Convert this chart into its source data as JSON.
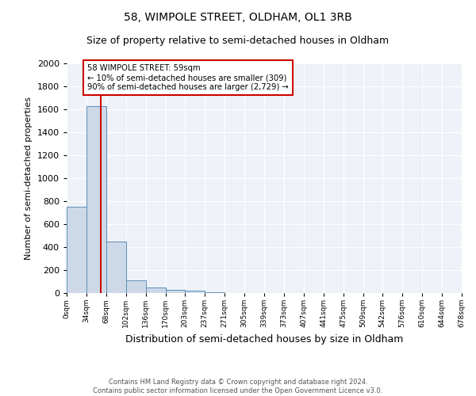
{
  "title": "58, WIMPOLE STREET, OLDHAM, OL1 3RB",
  "subtitle": "Size of property relative to semi-detached houses in Oldham",
  "xlabel": "Distribution of semi-detached houses by size in Oldham",
  "ylabel": "Number of semi-detached properties",
  "footnote1": "Contains HM Land Registry data © Crown copyright and database right 2024.",
  "footnote2": "Contains public sector information licensed under the Open Government Licence v3.0.",
  "annotation_title": "58 WIMPOLE STREET: 59sqm",
  "annotation_line1": "← 10% of semi-detached houses are smaller (309)",
  "annotation_line2": "90% of semi-detached houses are larger (2,729) →",
  "property_size": 59,
  "bin_edges": [
    0,
    34,
    68,
    102,
    136,
    170,
    203,
    237,
    271,
    305,
    339,
    373,
    407,
    441,
    475,
    509,
    542,
    576,
    610,
    644,
    678
  ],
  "bar_heights": [
    750,
    1625,
    450,
    110,
    45,
    30,
    20,
    5,
    0,
    0,
    0,
    0,
    0,
    0,
    0,
    0,
    0,
    0,
    0,
    0
  ],
  "bar_color": "#cdd9e8",
  "bar_edge_color": "#5b8db8",
  "red_line_color": "#cc0000",
  "annotation_box_color": "#cc0000",
  "background_color": "#eef2f8",
  "grid_color": "#ffffff",
  "ylim": [
    0,
    2000
  ],
  "yticks": [
    0,
    200,
    400,
    600,
    800,
    1000,
    1200,
    1400,
    1600,
    1800,
    2000
  ],
  "title_fontsize": 10,
  "subtitle_fontsize": 9,
  "ylabel_fontsize": 8,
  "xlabel_fontsize": 9
}
